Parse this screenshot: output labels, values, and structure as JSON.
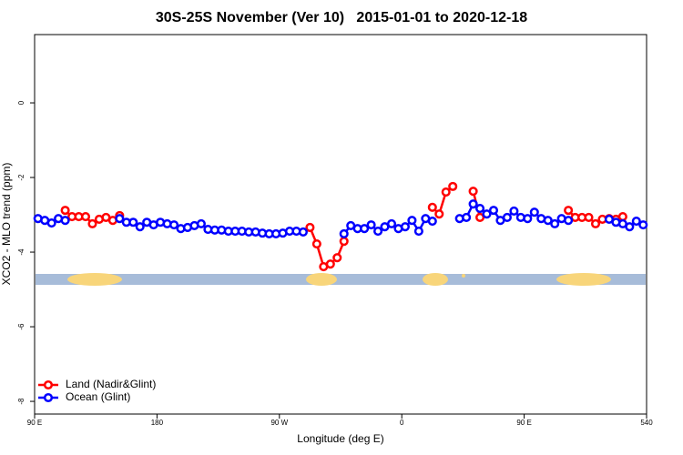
{
  "chart_data": {
    "type": "line",
    "title": "30S-25S November (Ver 10)   2015-01-01 to 2020-12-18",
    "xlabel": "Longitude (deg E)",
    "ylabel": "XCO2 - MLO trend (ppm)",
    "xlim": [
      90,
      540
    ],
    "ylim": [
      -8.34,
      1.83
    ],
    "xticks": [
      {
        "value": 90,
        "label": "90 E"
      },
      180,
      {
        "value": 270,
        "label": "90 W"
      },
      {
        "value": 360,
        "label": "0"
      },
      {
        "value": 450,
        "label": "90 E"
      },
      540
    ],
    "yticks": [
      0,
      -2,
      -4,
      -6,
      -8
    ],
    "legend": "bottom-left",
    "x": [
      92.5,
      97.5,
      102.5,
      107.5,
      112.5,
      117.5,
      122.5,
      127.5,
      132.5,
      137.5,
      142.5,
      147.5,
      152.5,
      157.5,
      162.5,
      167.5,
      172.5,
      177.5,
      182.5,
      187.5,
      192.5,
      197.5,
      202.5,
      207.5,
      212.5,
      217.5,
      222.5,
      227.5,
      232.5,
      237.5,
      242.5,
      247.5,
      252.5,
      257.5,
      262.5,
      267.5,
      272.5,
      277.5,
      282.5,
      287.5,
      292.5,
      297.5,
      302.5,
      307.5,
      312.5,
      317.5,
      322.5,
      327.5,
      332.5,
      337.5,
      342.5,
      347.5,
      352.5,
      357.5,
      362.5,
      367.5,
      372.5,
      377.5,
      382.5,
      387.5,
      392.5,
      397.5,
      402.5,
      407.5,
      412.5,
      417.5,
      422.5,
      427.5,
      432.5,
      437.5,
      442.5,
      447.5,
      452.5,
      457.5,
      462.5,
      467.5,
      472.5,
      477.5,
      482.5,
      487.5,
      492.5,
      497.5,
      502.5,
      507.5,
      512.5,
      517.5,
      522.5,
      527.5,
      532.5,
      537.5
    ],
    "series": [
      {
        "name": "Land (Nadir&Glint)",
        "color": "#ff0000",
        "values": [
          null,
          null,
          null,
          null,
          -2.88,
          -3.05,
          -3.05,
          -3.05,
          -3.24,
          -3.12,
          -3.07,
          -3.15,
          -3.02,
          null,
          null,
          null,
          null,
          null,
          null,
          null,
          null,
          null,
          null,
          null,
          null,
          null,
          null,
          null,
          null,
          null,
          null,
          null,
          null,
          null,
          null,
          null,
          null,
          null,
          null,
          null,
          -3.34,
          -3.78,
          -4.39,
          -4.32,
          -4.15,
          -3.71,
          null,
          null,
          null,
          null,
          null,
          null,
          null,
          null,
          null,
          null,
          null,
          null,
          -2.8,
          -2.98,
          -2.39,
          -2.24,
          null,
          null,
          -2.37,
          -3.07,
          null,
          null,
          null,
          null,
          null,
          null,
          null,
          null,
          null,
          null,
          null,
          null,
          -2.88,
          -3.07,
          -3.07,
          -3.07,
          -3.24,
          -3.12,
          -3.1,
          -3.12,
          -3.05,
          null,
          null,
          null
        ]
      },
      {
        "name": "Ocean (Glint)",
        "color": "#0000ff",
        "values": [
          -3.1,
          -3.15,
          -3.22,
          -3.1,
          -3.15,
          null,
          null,
          null,
          null,
          null,
          null,
          null,
          -3.1,
          -3.2,
          -3.2,
          -3.32,
          -3.2,
          -3.27,
          -3.2,
          -3.24,
          -3.27,
          -3.37,
          -3.34,
          -3.29,
          -3.24,
          -3.39,
          -3.41,
          -3.41,
          -3.44,
          -3.44,
          -3.44,
          -3.46,
          -3.46,
          -3.49,
          -3.51,
          -3.51,
          -3.49,
          -3.44,
          -3.44,
          -3.46,
          null,
          null,
          null,
          null,
          null,
          -3.51,
          -3.29,
          -3.37,
          -3.37,
          -3.27,
          -3.44,
          -3.32,
          -3.24,
          -3.37,
          -3.32,
          -3.15,
          -3.44,
          -3.1,
          -3.17,
          null,
          null,
          null,
          -3.1,
          -3.07,
          -2.71,
          -2.83,
          -2.98,
          -2.88,
          -3.15,
          -3.07,
          -2.9,
          -3.07,
          -3.1,
          -2.93,
          -3.1,
          -3.15,
          -3.24,
          -3.1,
          -3.15,
          null,
          null,
          null,
          null,
          null,
          -3.12,
          -3.2,
          -3.24,
          -3.32,
          -3.17,
          -3.27
        ]
      }
    ]
  }
}
